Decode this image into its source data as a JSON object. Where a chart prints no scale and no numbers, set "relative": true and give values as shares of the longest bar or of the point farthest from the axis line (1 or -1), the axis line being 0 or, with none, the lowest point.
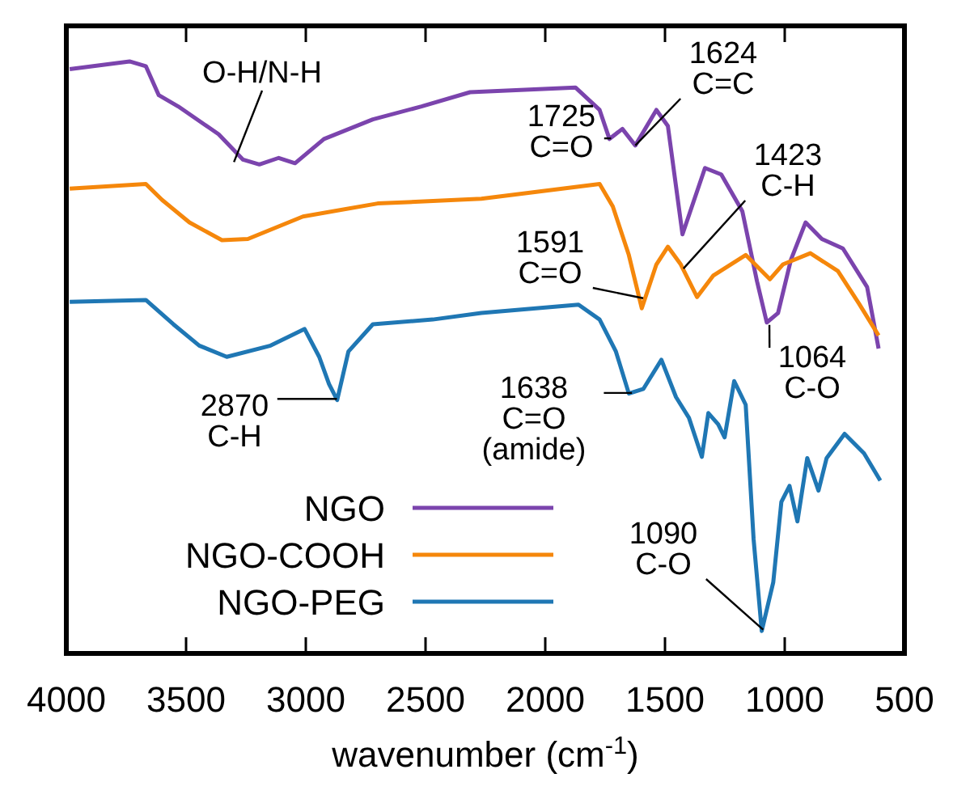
{
  "chart_data": {
    "type": "line",
    "relative": true,
    "xlabel": "wavenumber (cm$^{-1}$)",
    "xlim": [
      4000,
      500
    ],
    "xticks": [
      4000,
      3500,
      3000,
      2500,
      2000,
      1500,
      1000,
      500
    ],
    "legend": "bottom left",
    "marker": "none",
    "line_style": "solid",
    "tick_labels": "x",
    "series": [
      {
        "name": "NGO",
        "color": "#7b44ad",
        "x": [
          3986,
          3736,
          3668,
          3614,
          3533,
          3364,
          3262,
          3194,
          3113,
          3045,
          2924,
          2720,
          2517,
          2314,
          1874,
          1773,
          1732,
          1678,
          1624,
          1536,
          1488,
          1427,
          1333,
          1265,
          1177,
          1116,
          1075,
          1028,
          974,
          913,
          845,
          757,
          656,
          608
        ],
        "values": [
          0.987,
          1,
          0.992,
          0.943,
          0.924,
          0.877,
          0.834,
          0.826,
          0.837,
          0.828,
          0.869,
          0.902,
          0.924,
          0.948,
          0.956,
          0.918,
          0.869,
          0.886,
          0.858,
          0.918,
          0.891,
          0.708,
          0.82,
          0.809,
          0.747,
          0.629,
          0.559,
          0.575,
          0.665,
          0.728,
          0.7,
          0.684,
          0.619,
          0.515
        ]
      },
      {
        "name": "NGO-COOH",
        "color": "#f5870b",
        "x": [
          3986,
          3668,
          3600,
          3486,
          3350,
          3242,
          3012,
          2700,
          2267,
          1773,
          1718,
          1651,
          1597,
          1536,
          1488,
          1434,
          1366,
          1299,
          1163,
          1062,
          1008,
          893,
          778,
          690,
          608
        ],
        "values": [
          0.785,
          0.793,
          0.766,
          0.728,
          0.698,
          0.7,
          0.738,
          0.76,
          0.768,
          0.793,
          0.755,
          0.673,
          0.583,
          0.657,
          0.687,
          0.657,
          0.602,
          0.638,
          0.673,
          0.632,
          0.657,
          0.676,
          0.646,
          0.591,
          0.537
        ]
      },
      {
        "name": "NGO-PEG",
        "color": "#1f77b4",
        "x": [
          3986,
          3668,
          3553,
          3445,
          3330,
          3147,
          3005,
          2944,
          2903,
          2869,
          2822,
          2720,
          2470,
          2267,
          1861,
          1773,
          1705,
          1651,
          1590,
          1515,
          1454,
          1400,
          1346,
          1319,
          1278,
          1251,
          1211,
          1163,
          1130,
          1096,
          1048,
          1014,
          980,
          947,
          906,
          859,
          825,
          750,
          669,
          601
        ],
        "values": [
          0.594,
          0.597,
          0.556,
          0.52,
          0.501,
          0.52,
          0.548,
          0.501,
          0.455,
          0.428,
          0.51,
          0.556,
          0.564,
          0.575,
          0.589,
          0.564,
          0.51,
          0.439,
          0.447,
          0.496,
          0.433,
          0.398,
          0.332,
          0.406,
          0.387,
          0.365,
          0.46,
          0.42,
          0.193,
          0.038,
          0.12,
          0.256,
          0.283,
          0.223,
          0.33,
          0.275,
          0.33,
          0.371,
          0.338,
          0.292
        ]
      }
    ],
    "annotations": [
      {
        "text": "O-H/N-H",
        "x": 3300,
        "y": 0.83
      },
      {
        "text": "1725\nC=O",
        "x": 1725,
        "y": 0.87
      },
      {
        "text": "1624\nC=C",
        "x": 1624,
        "y": 0.858
      },
      {
        "text": "1423\nC-H",
        "x": 1423,
        "y": 0.65
      },
      {
        "text": "1591\nC=O",
        "x": 1591,
        "y": 0.6
      },
      {
        "text": "1064\nC-O",
        "x": 1064,
        "y": 0.555
      },
      {
        "text": "2870\nC-H",
        "x": 2870,
        "y": 0.43
      },
      {
        "text": "1638\nC=O\n(amide)",
        "x": 1638,
        "y": 0.44
      },
      {
        "text": "1090\nC-O",
        "x": 1090,
        "y": 0.04
      }
    ]
  }
}
